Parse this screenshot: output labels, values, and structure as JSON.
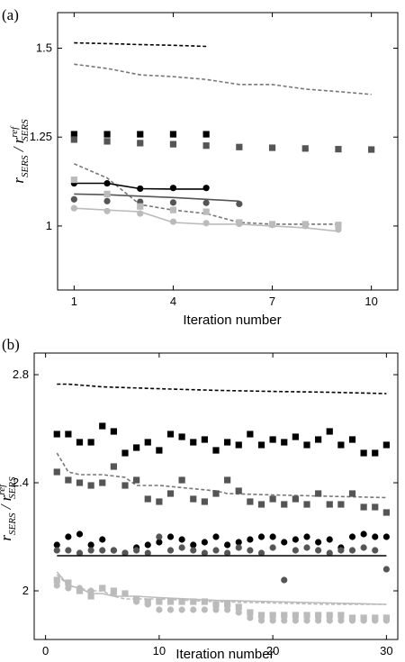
{
  "colors": {
    "black": "#000000",
    "dark_gray": "#555555",
    "mid_gray": "#777777",
    "light_gray": "#bbbbbb"
  },
  "chart_data": [
    {
      "panel_label": "(a)",
      "type": "scatter",
      "xlabel": "Iteration number",
      "ylabel": {
        "main": "r",
        "main_sub": "SERS",
        "sep": " / ",
        "ref": "r",
        "ref_sup": "ref",
        "ref_sub": "SERS"
      },
      "xlim": [
        0.5,
        10.8
      ],
      "ylim": [
        0.82,
        1.6
      ],
      "xticks": [
        1,
        4,
        7,
        10
      ],
      "yticks": [
        {
          "value": 1.0,
          "label": "1"
        },
        {
          "value": 1.25,
          "label": "1.25"
        },
        {
          "value": 1.5,
          "label": "1.5"
        }
      ],
      "series": [
        {
          "style": "dashed",
          "color": "#000000",
          "x": [
            1,
            2,
            3,
            4,
            5
          ],
          "y": [
            1.515,
            1.513,
            1.51,
            1.508,
            1.505
          ]
        },
        {
          "style": "dashed",
          "color": "#777777",
          "x": [
            1,
            2,
            3,
            4,
            5,
            6,
            7,
            8,
            9,
            10
          ],
          "y": [
            1.455,
            1.443,
            1.425,
            1.42,
            1.412,
            1.398,
            1.398,
            1.385,
            1.378,
            1.37
          ]
        },
        {
          "style": "square",
          "color": "#000000",
          "x": [
            1,
            2,
            3,
            4,
            5
          ],
          "y": [
            1.258,
            1.258,
            1.258,
            1.258,
            1.258
          ]
        },
        {
          "style": "square",
          "color": "#555555",
          "x": [
            1,
            2,
            3,
            4,
            5,
            6,
            7,
            8,
            9,
            10
          ],
          "y": [
            1.243,
            1.238,
            1.233,
            1.23,
            1.226,
            1.222,
            1.22,
            1.218,
            1.216,
            1.215
          ]
        },
        {
          "style": "dashed",
          "color": "#777777",
          "x": [
            1,
            2,
            3,
            4,
            5,
            6,
            7,
            8,
            9
          ],
          "y": [
            1.175,
            1.135,
            1.06,
            1.045,
            1.035,
            1.01,
            1.005,
            1.005,
            1.005
          ]
        },
        {
          "style": "solid",
          "color": "#000000",
          "x": [
            1,
            2,
            3,
            4,
            5
          ],
          "y": [
            1.12,
            1.12,
            1.105,
            1.104,
            1.104
          ]
        },
        {
          "style": "circle",
          "color": "#000000",
          "x": [
            1,
            2,
            3,
            4,
            5
          ],
          "y": [
            1.12,
            1.12,
            1.105,
            1.107,
            1.107
          ]
        },
        {
          "style": "solid",
          "color": "#555555",
          "x": [
            1,
            2,
            3,
            4,
            5,
            6
          ],
          "y": [
            1.09,
            1.088,
            1.084,
            1.08,
            1.075,
            1.07
          ]
        },
        {
          "style": "circle",
          "color": "#555555",
          "x": [
            1,
            2,
            3,
            4,
            5,
            6
          ],
          "y": [
            1.075,
            1.07,
            1.068,
            1.066,
            1.065,
            1.062
          ]
        },
        {
          "style": "square",
          "color": "#bbbbbb",
          "x": [
            1,
            2,
            3,
            4,
            5,
            6,
            7,
            8,
            9
          ],
          "y": [
            1.13,
            1.09,
            1.055,
            1.045,
            1.04,
            1.01,
            1.005,
            1.005,
            1.003
          ]
        },
        {
          "style": "solid",
          "color": "#bbbbbb",
          "x": [
            1,
            2,
            3,
            4,
            5,
            6,
            7,
            8,
            9
          ],
          "y": [
            1.05,
            1.045,
            1.04,
            1.01,
            1.005,
            1.005,
            1.0,
            0.995,
            0.985
          ]
        },
        {
          "style": "circle",
          "color": "#bbbbbb",
          "x": [
            1,
            2,
            3,
            4,
            5,
            6,
            7,
            8,
            9
          ],
          "y": [
            1.05,
            1.042,
            1.035,
            1.012,
            1.008,
            1.006,
            1.003,
            1.0,
            0.99
          ]
        }
      ]
    },
    {
      "panel_label": "(b)",
      "type": "scatter",
      "xlabel": "Iteration number",
      "ylabel": {
        "main": "r",
        "main_sub": "SERS",
        "sep": " / ",
        "ref": "r",
        "ref_sup": "ref",
        "ref_sub": "SERS"
      },
      "xlim": [
        -1,
        31
      ],
      "ylim": [
        1.82,
        2.88
      ],
      "xticks": [
        0,
        10,
        20,
        30
      ],
      "yticks": [
        {
          "value": 2.0,
          "label": "2"
        },
        {
          "value": 2.4,
          "label": "2.4"
        },
        {
          "value": 2.8,
          "label": "2.8"
        }
      ],
      "series": [
        {
          "style": "dashed",
          "color": "#000000",
          "x": [
            1,
            2,
            5,
            10,
            15,
            20,
            25,
            30
          ],
          "y": [
            2.765,
            2.765,
            2.755,
            2.748,
            2.742,
            2.738,
            2.735,
            2.73
          ]
        },
        {
          "style": "square",
          "color": "#000000",
          "x": [
            1,
            2,
            3,
            4,
            5,
            6,
            7,
            8,
            9,
            10,
            11,
            12,
            13,
            14,
            15,
            16,
            17,
            18,
            19,
            20,
            21,
            22,
            23,
            24,
            25,
            26,
            27,
            28,
            29,
            30
          ],
          "y": [
            2.58,
            2.58,
            2.55,
            2.55,
            2.61,
            2.59,
            2.51,
            2.53,
            2.55,
            2.52,
            2.58,
            2.57,
            2.55,
            2.56,
            2.52,
            2.55,
            2.54,
            2.58,
            2.54,
            2.56,
            2.55,
            2.57,
            2.54,
            2.56,
            2.59,
            2.54,
            2.56,
            2.51,
            2.51,
            2.54
          ]
        },
        {
          "style": "dashed",
          "color": "#777777",
          "x": [
            1,
            2,
            3,
            5,
            7,
            8,
            10,
            15,
            16,
            20,
            25,
            30
          ],
          "y": [
            2.51,
            2.44,
            2.43,
            2.43,
            2.42,
            2.39,
            2.39,
            2.37,
            2.36,
            2.355,
            2.35,
            2.345
          ]
        },
        {
          "style": "square",
          "color": "#555555",
          "x": [
            1,
            2,
            3,
            4,
            5,
            6,
            7,
            8,
            9,
            10,
            11,
            12,
            13,
            14,
            15,
            16,
            17,
            18,
            19,
            20,
            21,
            22,
            23,
            24,
            25,
            26,
            27,
            28,
            29,
            30
          ],
          "y": [
            2.44,
            2.41,
            2.4,
            2.39,
            2.4,
            2.46,
            2.39,
            2.41,
            2.34,
            2.33,
            2.36,
            2.41,
            2.34,
            2.33,
            2.36,
            2.41,
            2.37,
            2.33,
            2.32,
            2.34,
            2.32,
            2.34,
            2.32,
            2.36,
            2.32,
            2.32,
            2.36,
            2.31,
            2.31,
            2.29
          ]
        },
        {
          "style": "circle",
          "color": "#000000",
          "x": [
            1,
            2,
            3,
            4,
            5,
            6,
            7,
            8,
            9,
            10,
            11,
            12,
            13,
            14,
            15,
            16,
            17,
            18,
            19,
            20,
            21,
            22,
            23,
            24,
            25,
            26,
            27,
            28,
            29,
            30
          ],
          "y": [
            2.17,
            2.2,
            2.21,
            2.17,
            2.19,
            2.15,
            2.14,
            2.16,
            2.17,
            2.18,
            2.2,
            2.19,
            2.17,
            2.18,
            2.2,
            2.17,
            2.18,
            2.19,
            2.2,
            2.2,
            2.18,
            2.19,
            2.2,
            2.18,
            2.19,
            2.16,
            2.2,
            2.21,
            2.2,
            2.2
          ]
        },
        {
          "style": "circle",
          "color": "#555555",
          "x": [
            1,
            2,
            3,
            4,
            5,
            6,
            7,
            8,
            9,
            10,
            11,
            12,
            13,
            14,
            15,
            16,
            17,
            18,
            19,
            20,
            21,
            22,
            23,
            24,
            25,
            26,
            27,
            28,
            29,
            30
          ],
          "y": [
            2.15,
            2.15,
            2.14,
            2.15,
            2.15,
            2.15,
            2.14,
            2.15,
            2.14,
            2.2,
            2.15,
            2.16,
            2.15,
            2.14,
            2.15,
            2.14,
            2.16,
            2.15,
            2.14,
            2.16,
            2.04,
            2.15,
            2.16,
            2.15,
            2.14,
            2.15,
            2.15,
            2.16,
            2.15,
            2.08
          ]
        },
        {
          "style": "solid",
          "color": "#000000",
          "x": [
            1,
            30
          ],
          "y": [
            2.13,
            2.13
          ]
        },
        {
          "style": "square",
          "color": "#bbbbbb",
          "x": [
            1,
            2,
            3,
            4,
            5,
            6,
            7,
            8,
            9,
            10,
            11,
            12,
            13,
            14,
            15,
            16,
            17,
            18,
            19,
            20,
            21,
            22,
            23,
            24,
            25,
            26,
            27,
            28,
            29,
            30
          ],
          "y": [
            2.04,
            2.03,
            2.0,
            1.98,
            2.01,
            2.0,
            1.99,
            1.97,
            1.96,
            1.96,
            1.96,
            1.96,
            1.96,
            1.96,
            1.95,
            1.95,
            1.94,
            1.92,
            1.91,
            1.91,
            1.91,
            1.91,
            1.91,
            1.91,
            1.91,
            1.91,
            1.9,
            1.9,
            1.9,
            1.9
          ]
        },
        {
          "style": "dashed",
          "color": "#bbbbbb",
          "x": [
            1,
            2,
            3,
            4,
            5,
            6,
            7,
            8,
            10,
            15,
            20,
            25,
            30
          ],
          "y": [
            2.06,
            2.02,
            2.01,
            2.0,
            2.0,
            1.98,
            1.97,
            1.97,
            1.97,
            1.96,
            1.955,
            1.95,
            1.95
          ]
        },
        {
          "style": "solid",
          "color": "#bbbbbb",
          "x": [
            1,
            2,
            3,
            4,
            5,
            6,
            7,
            8,
            10,
            15,
            20,
            25,
            30
          ],
          "y": [
            2.07,
            2.02,
            2.01,
            1.99,
            1.99,
            1.98,
            1.98,
            1.98,
            1.975,
            1.965,
            1.96,
            1.955,
            1.95
          ]
        },
        {
          "style": "circle",
          "color": "#bbbbbb",
          "x": [
            1,
            2,
            3,
            4,
            5,
            6,
            7,
            8,
            9,
            10,
            11,
            12,
            13,
            14,
            15,
            16,
            17,
            18,
            19,
            20,
            21,
            22,
            23,
            24,
            25,
            26,
            27,
            28,
            29,
            30
          ],
          "y": [
            2.02,
            2.01,
            2.01,
            2.0,
            2.01,
            1.99,
            1.99,
            1.96,
            1.95,
            1.93,
            1.93,
            1.93,
            1.93,
            1.93,
            1.93,
            1.93,
            1.92,
            1.9,
            1.89,
            1.89,
            1.89,
            1.89,
            1.89,
            1.89,
            1.89,
            1.89,
            1.89,
            1.89,
            1.89,
            1.89
          ]
        }
      ]
    }
  ]
}
